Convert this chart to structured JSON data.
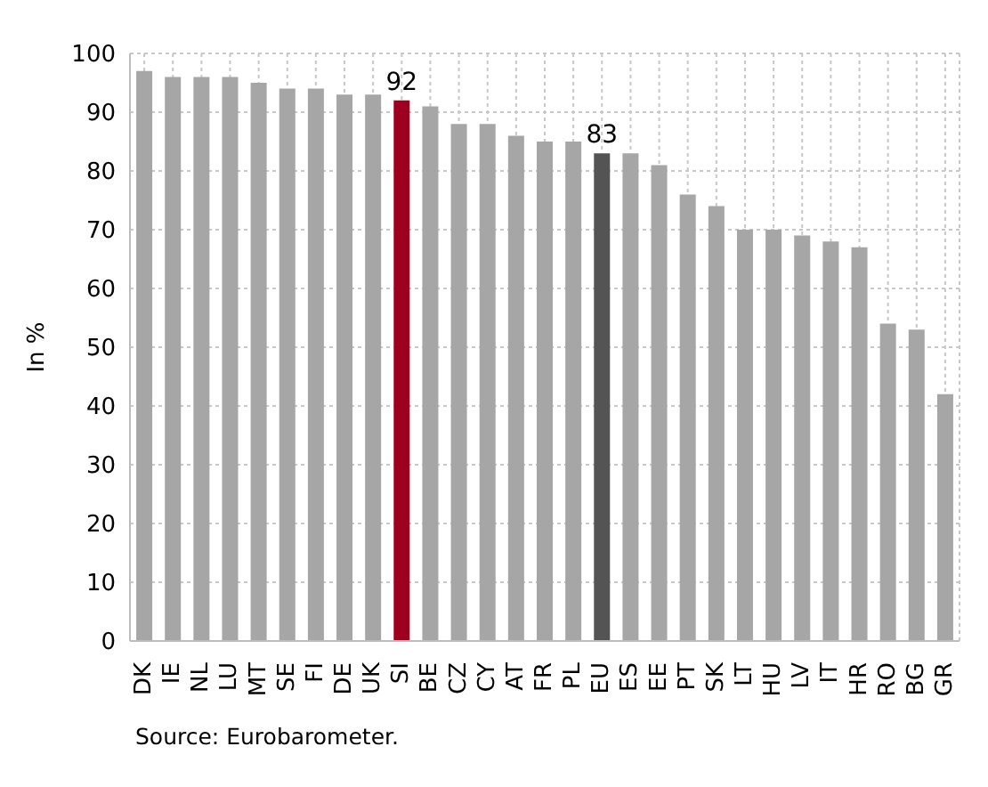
{
  "chart_data": {
    "type": "bar",
    "ylabel": "In %",
    "annotations": [
      "Source: Eurobarometer."
    ],
    "categories": [
      "DK",
      "IE",
      "NL",
      "LU",
      "MT",
      "SE",
      "FI",
      "DE",
      "UK",
      "SI",
      "BE",
      "CZ",
      "CY",
      "AT",
      "FR",
      "PL",
      "EU",
      "ES",
      "EE",
      "PT",
      "SK",
      "LT",
      "HU",
      "LV",
      "IT",
      "HR",
      "RO",
      "BG",
      "GR"
    ],
    "values": [
      97,
      96,
      96,
      96,
      95,
      94,
      94,
      93,
      93,
      92,
      91,
      88,
      88,
      86,
      85,
      85,
      83,
      83,
      81,
      76,
      74,
      70,
      70,
      69,
      68,
      67,
      54,
      53,
      42
    ],
    "colors": [
      "#a6a6a6",
      "#a6a6a6",
      "#a6a6a6",
      "#a6a6a6",
      "#a6a6a6",
      "#a6a6a6",
      "#a6a6a6",
      "#a6a6a6",
      "#a6a6a6",
      "#9e0020",
      "#a6a6a6",
      "#a6a6a6",
      "#a6a6a6",
      "#a6a6a6",
      "#a6a6a6",
      "#a6a6a6",
      "#545454",
      "#a6a6a6",
      "#a6a6a6",
      "#a6a6a6",
      "#a6a6a6",
      "#a6a6a6",
      "#a6a6a6",
      "#a6a6a6",
      "#a6a6a6",
      "#a6a6a6",
      "#a6a6a6",
      "#a6a6a6",
      "#a6a6a6"
    ],
    "value_labels": [
      null,
      null,
      null,
      null,
      null,
      null,
      null,
      null,
      null,
      "92",
      null,
      null,
      null,
      null,
      null,
      null,
      "83",
      null,
      null,
      null,
      null,
      null,
      null,
      null,
      null,
      null,
      null,
      null,
      null
    ],
    "ylim": [
      0,
      100
    ],
    "yticks": [
      0,
      10,
      20,
      30,
      40,
      50,
      60,
      70,
      80,
      90,
      100
    ],
    "grid": true
  }
}
